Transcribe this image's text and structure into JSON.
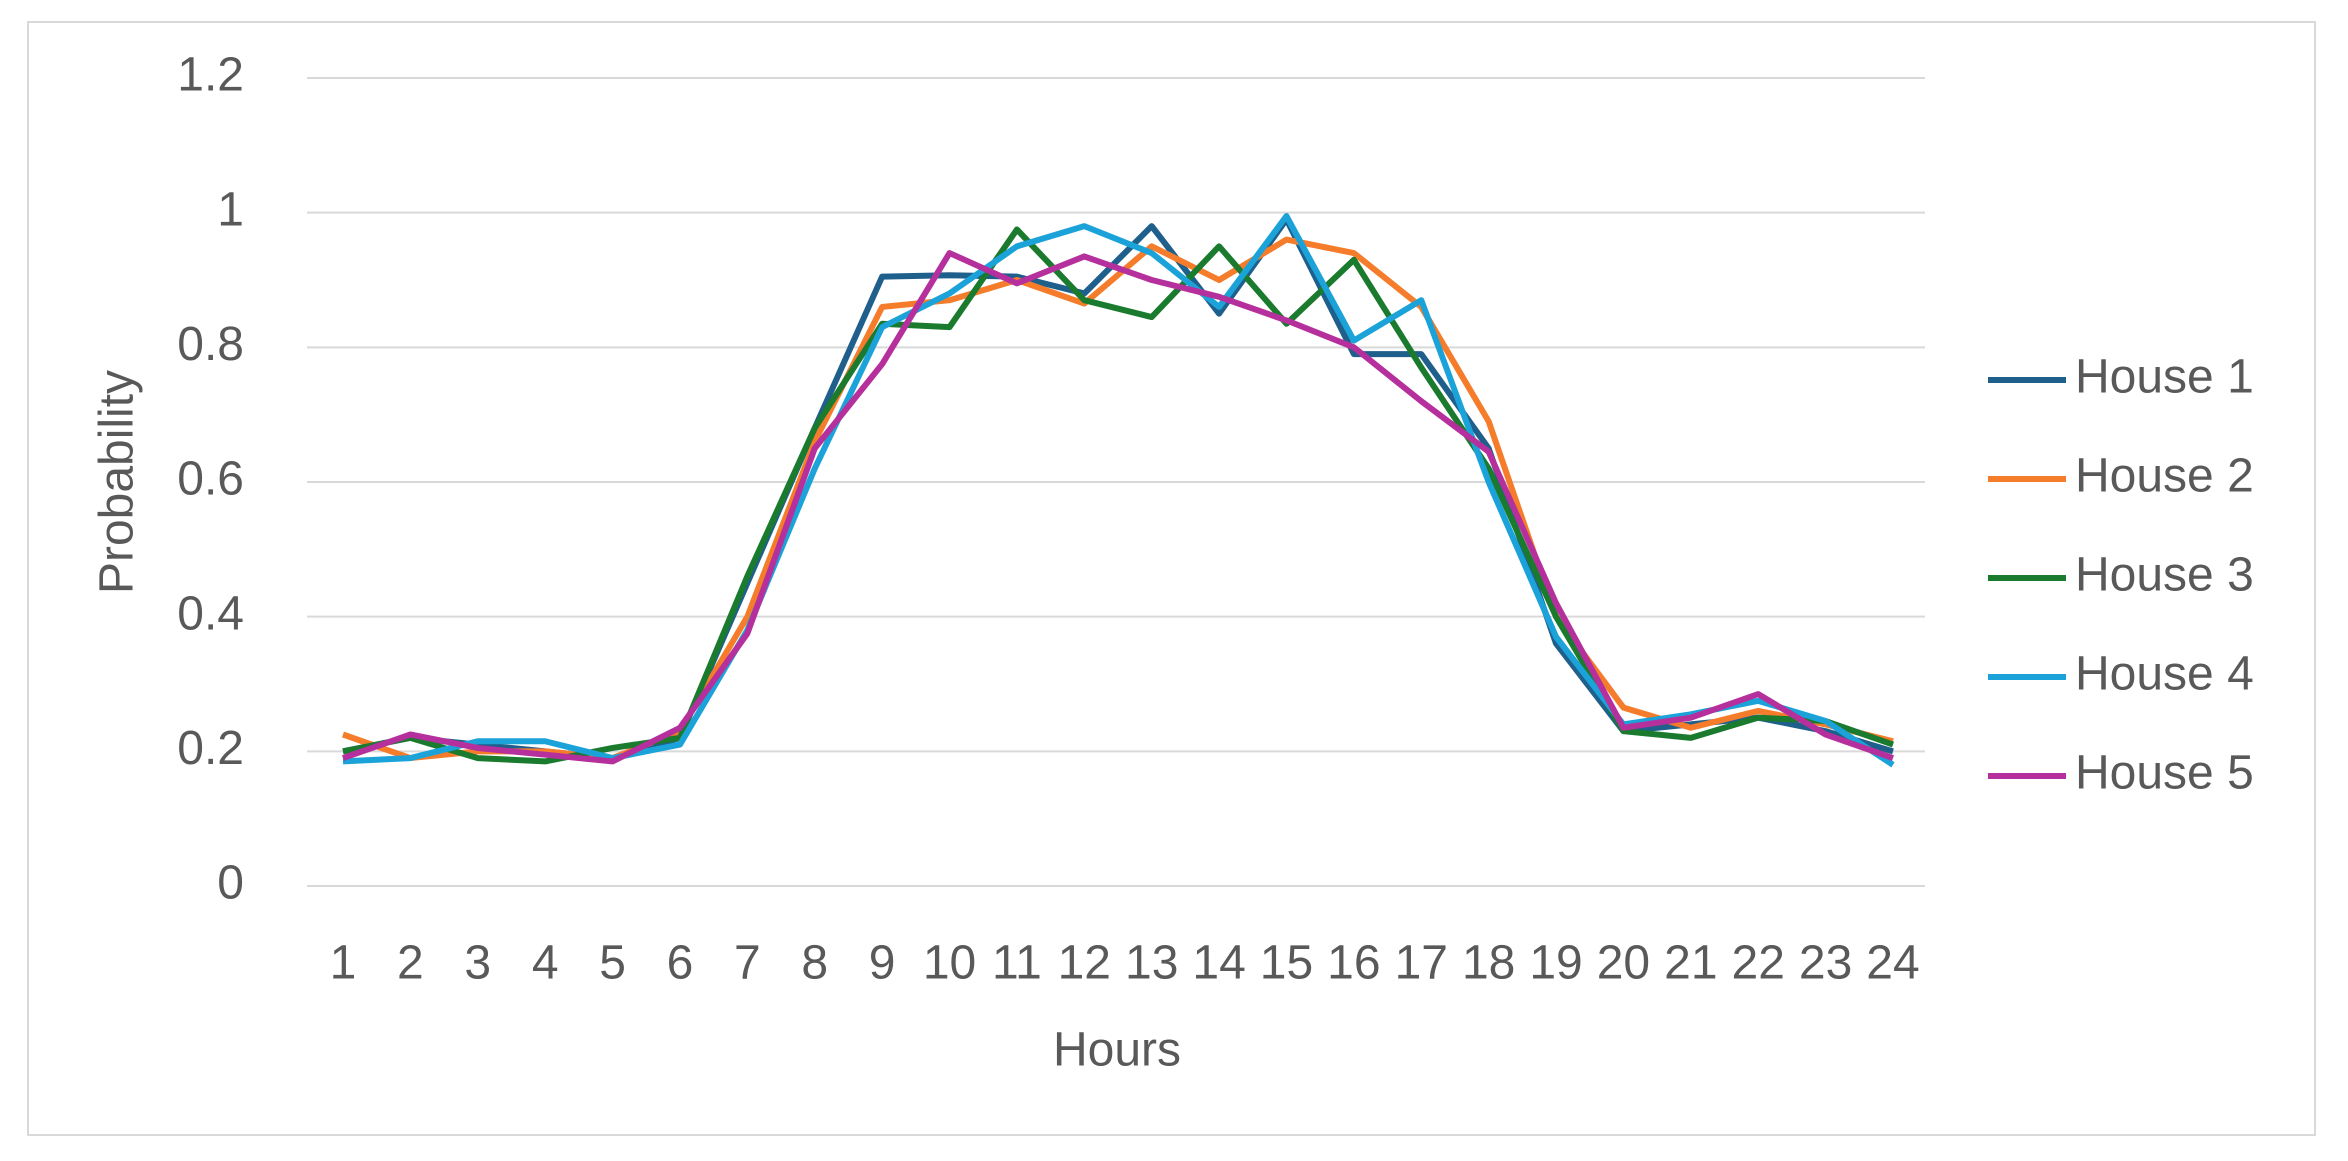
{
  "chart_data": {
    "type": "line",
    "xlabel": "Hours",
    "ylabel": "Probability",
    "categories": [
      "1",
      "2",
      "3",
      "4",
      "5",
      "6",
      "7",
      "8",
      "9",
      "10",
      "11",
      "12",
      "13",
      "14",
      "15",
      "16",
      "17",
      "18",
      "19",
      "20",
      "21",
      "22",
      "23",
      "24"
    ],
    "ylim": [
      0,
      1.2
    ],
    "yticks": [
      0,
      0.2,
      0.4,
      0.6,
      0.8,
      1,
      1.2
    ],
    "grid": true,
    "legend": "right",
    "series": [
      {
        "name": "House 1",
        "color": "#1f5f8b",
        "values": [
          0.2,
          0.22,
          0.21,
          0.2,
          0.19,
          0.22,
          0.45,
          0.68,
          0.905,
          0.907,
          0.905,
          0.88,
          0.98,
          0.85,
          0.99,
          0.79,
          0.79,
          0.65,
          0.36,
          0.23,
          0.24,
          0.25,
          0.23,
          0.2
        ]
      },
      {
        "name": "House 2",
        "color": "#f57c2a",
        "values": [
          0.225,
          0.19,
          0.2,
          0.2,
          0.19,
          0.23,
          0.4,
          0.66,
          0.86,
          0.87,
          0.9,
          0.865,
          0.95,
          0.9,
          0.96,
          0.94,
          0.86,
          0.69,
          0.4,
          0.265,
          0.235,
          0.26,
          0.24,
          0.215
        ]
      },
      {
        "name": "House 3",
        "color": "#1a7a2e",
        "values": [
          0.2,
          0.22,
          0.19,
          0.185,
          0.205,
          0.22,
          0.46,
          0.68,
          0.835,
          0.83,
          0.975,
          0.87,
          0.845,
          0.95,
          0.835,
          0.93,
          0.77,
          0.62,
          0.4,
          0.23,
          0.22,
          0.25,
          0.245,
          0.21
        ]
      },
      {
        "name": "House 4",
        "color": "#1ba3d9",
        "values": [
          0.185,
          0.19,
          0.215,
          0.215,
          0.19,
          0.21,
          0.38,
          0.62,
          0.83,
          0.88,
          0.95,
          0.98,
          0.94,
          0.86,
          0.995,
          0.81,
          0.87,
          0.6,
          0.37,
          0.24,
          0.255,
          0.275,
          0.245,
          0.18
        ]
      },
      {
        "name": "House 5",
        "color": "#b5309c",
        "values": [
          0.19,
          0.225,
          0.205,
          0.195,
          0.185,
          0.235,
          0.375,
          0.65,
          0.775,
          0.94,
          0.895,
          0.935,
          0.9,
          0.875,
          0.84,
          0.8,
          0.72,
          0.645,
          0.42,
          0.235,
          0.25,
          0.285,
          0.225,
          0.19
        ]
      }
    ]
  }
}
